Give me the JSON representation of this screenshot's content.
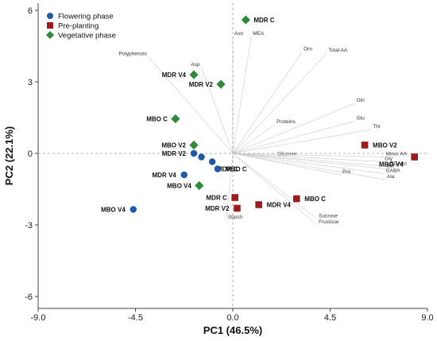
{
  "chart_data": {
    "type": "scatter",
    "title": "",
    "xlabel": "PC1 (46.5%)",
    "ylabel": "PC2 (22.1%)",
    "xlim": [
      -9.0,
      9.0
    ],
    "ylim": [
      -6.5,
      6.3
    ],
    "xticks": [
      "-9.0",
      "-4.5",
      "0.0",
      "4.5",
      "9.0"
    ],
    "xtick_values": [
      -9.0,
      -4.5,
      0.0,
      4.5,
      9.0
    ],
    "yticks": [
      "6",
      "3",
      "0",
      "-3",
      "-6"
    ],
    "ytick_values": [
      6,
      3,
      0,
      -3,
      -6
    ],
    "zero_lines": "dashed",
    "legend_position": "top-left",
    "series": [
      {
        "name": "Flowering phase",
        "marker": "circle",
        "color": "#1f5aa8",
        "points": [
          {
            "x": -1.8,
            "y": 0.0,
            "label": "MDR V2"
          },
          {
            "x": -1.45,
            "y": -0.15,
            "label": ""
          },
          {
            "x": -0.95,
            "y": -0.35,
            "label": "MDR C"
          },
          {
            "x": -0.7,
            "y": -0.65,
            "label": "MBO C"
          },
          {
            "x": -2.25,
            "y": -0.9,
            "label": "MDR V4"
          },
          {
            "x": -4.6,
            "y": -2.35,
            "label": "MBO V4"
          }
        ]
      },
      {
        "name": "Pre-planting",
        "marker": "square",
        "color": "#9b1c1c",
        "points": [
          {
            "x": 6.1,
            "y": 0.35,
            "label": "MBO V2"
          },
          {
            "x": 8.4,
            "y": -0.15,
            "label": "MBO V4"
          },
          {
            "x": 0.1,
            "y": -1.85,
            "label": "MDR C"
          },
          {
            "x": 0.2,
            "y": -2.3,
            "label": "MDR V2"
          },
          {
            "x": 1.2,
            "y": -2.15,
            "label": "MDR V4"
          },
          {
            "x": 2.95,
            "y": -1.9,
            "label": "MBO C"
          }
        ]
      },
      {
        "name": "Vegetative phase",
        "marker": "diamond",
        "color": "#2e8b3a",
        "points": [
          {
            "x": 0.6,
            "y": 5.6,
            "label": "MDR C"
          },
          {
            "x": -1.8,
            "y": 3.3,
            "label": "MDR V4"
          },
          {
            "x": -0.55,
            "y": 2.9,
            "label": "MDR V2"
          },
          {
            "x": -2.65,
            "y": 1.45,
            "label": "MBO C"
          },
          {
            "x": -1.8,
            "y": 0.35,
            "label": "MBO V2"
          },
          {
            "x": -1.55,
            "y": -1.35,
            "label": "MBO V4"
          }
        ]
      }
    ],
    "variables": [
      {
        "name": "Asn",
        "x": 0.0,
        "y": 4.9
      },
      {
        "name": "MEA",
        "x": 0.85,
        "y": 4.9
      },
      {
        "name": "Asp",
        "x": -1.45,
        "y": 3.6
      },
      {
        "name": "Polyphenols",
        "x": -3.9,
        "y": 4.05
      },
      {
        "name": "Orn",
        "x": 3.2,
        "y": 4.25
      },
      {
        "name": "Total AA",
        "x": 4.35,
        "y": 4.2
      },
      {
        "name": "Proteins",
        "x": 1.95,
        "y": 1.2
      },
      {
        "name": "Gln",
        "x": 5.65,
        "y": 2.1
      },
      {
        "name": "Glu",
        "x": 5.65,
        "y": 1.35
      },
      {
        "name": "Thr",
        "x": 6.4,
        "y": 1.0
      },
      {
        "name": "Glucose",
        "x": 2.0,
        "y": -0.15
      },
      {
        "name": "Minor AA",
        "x": 7.0,
        "y": -0.15
      },
      {
        "name": "Gly",
        "x": 6.95,
        "y": -0.35
      },
      {
        "name": "BCAAs",
        "x": 7.2,
        "y": -0.55
      },
      {
        "name": "Ser",
        "x": 7.05,
        "y": -0.65
      },
      {
        "name": "GABA",
        "x": 7.0,
        "y": -0.85
      },
      {
        "name": "Ala",
        "x": 7.05,
        "y": -1.1
      },
      {
        "name": "Pro",
        "x": 5.0,
        "y": -0.9
      },
      {
        "name": "Starch",
        "x": -0.3,
        "y": -2.8
      },
      {
        "name": "Sucrose",
        "x": 3.9,
        "y": -2.75
      },
      {
        "name": "Fructose",
        "x": 3.9,
        "y": -3.0
      }
    ]
  }
}
